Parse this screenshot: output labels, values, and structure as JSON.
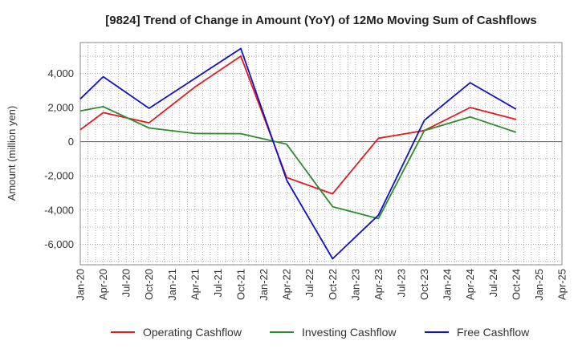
{
  "chart_data": {
    "type": "line",
    "title": "[9824]  Trend of Change in Amount (YoY) of 12Mo Moving Sum of Cashflows",
    "xlabel": "",
    "ylabel": "Amount (million yen)",
    "ylim": [
      -7200,
      5800
    ],
    "yticks": [
      -6000,
      -4000,
      -2000,
      0,
      2000,
      4000
    ],
    "ytick_labels": [
      "-6,000",
      "-4,000",
      "-2,000",
      "0",
      "2,000",
      "4,000"
    ],
    "categories": [
      "Jan-20",
      "Apr-20",
      "Jul-20",
      "Oct-20",
      "Jan-21",
      "Apr-21",
      "Jul-21",
      "Oct-21",
      "Jan-22",
      "Apr-22",
      "Jul-22",
      "Oct-22",
      "Jan-23",
      "Apr-23",
      "Jul-23",
      "Oct-23",
      "Jan-24",
      "Apr-24",
      "Jul-24",
      "Oct-24",
      "Jan-25",
      "Apr-25"
    ],
    "grid": true,
    "legend_position": "bottom",
    "series": [
      {
        "name": "Operating Cashflow",
        "color": "#e41a1c",
        "points": [
          [
            "Jan-20",
            700
          ],
          [
            "Apr-20",
            1700
          ],
          [
            "Oct-20",
            1100
          ],
          [
            "Apr-21",
            3200
          ],
          [
            "Oct-21",
            5000
          ],
          [
            "Apr-22",
            -2100
          ],
          [
            "Oct-22",
            -3050
          ],
          [
            "Apr-23",
            200
          ],
          [
            "Oct-23",
            650
          ],
          [
            "Apr-24",
            2000
          ],
          [
            "Oct-24",
            1300
          ]
        ]
      },
      {
        "name": "Investing Cashflow",
        "color": "#2e8b2e",
        "points": [
          [
            "Jan-20",
            1800
          ],
          [
            "Apr-20",
            2050
          ],
          [
            "Oct-20",
            800
          ],
          [
            "Apr-21",
            480
          ],
          [
            "Oct-21",
            470
          ],
          [
            "Apr-22",
            -150
          ],
          [
            "Oct-22",
            -3800
          ],
          [
            "Apr-23",
            -4500
          ],
          [
            "Oct-23",
            650
          ],
          [
            "Apr-24",
            1450
          ],
          [
            "Oct-24",
            550
          ]
        ]
      },
      {
        "name": "Free Cashflow",
        "color": "#1010d0",
        "points": [
          [
            "Jan-20",
            2500
          ],
          [
            "Apr-20",
            3800
          ],
          [
            "Oct-20",
            1950
          ],
          [
            "Apr-21",
            3700
          ],
          [
            "Oct-21",
            5450
          ],
          [
            "Apr-22",
            -2250
          ],
          [
            "Oct-22",
            -6850
          ],
          [
            "Apr-23",
            -4300
          ],
          [
            "Oct-23",
            1250
          ],
          [
            "Apr-24",
            3450
          ],
          [
            "Oct-24",
            1900
          ]
        ]
      }
    ]
  }
}
